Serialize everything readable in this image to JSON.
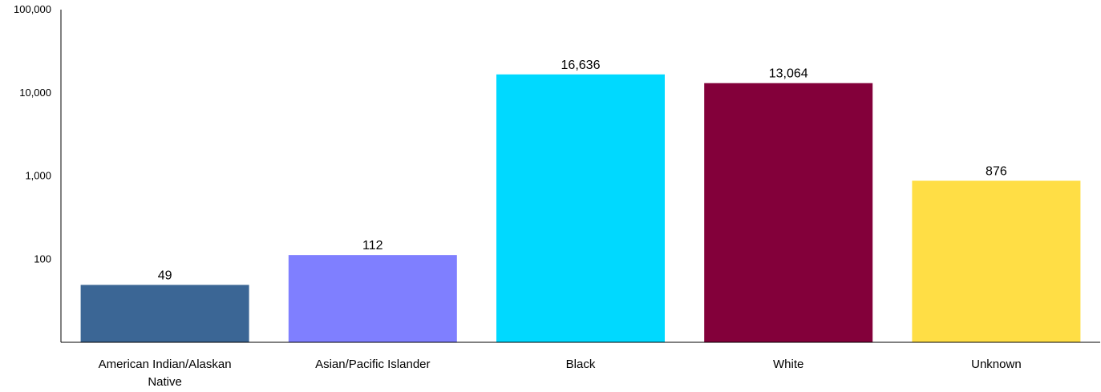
{
  "chart_data": {
    "type": "bar",
    "title": "",
    "xlabel": "",
    "ylabel": "",
    "y_scale": "log",
    "ylim": [
      10,
      100000
    ],
    "grid": false,
    "legend": "none",
    "y_ticks": [
      {
        "value": 100,
        "label": "100"
      },
      {
        "value": 1000,
        "label": "1,000"
      },
      {
        "value": 10000,
        "label": "10,000"
      },
      {
        "value": 100000,
        "label": "100,000"
      }
    ],
    "categories": [
      [
        "American Indian/Alaskan",
        "Native"
      ],
      [
        "Asian/Pacific Islander"
      ],
      [
        "Black"
      ],
      [
        "White"
      ],
      [
        "Unknown"
      ]
    ],
    "values": [
      49,
      112,
      16636,
      13064,
      876
    ],
    "value_labels": [
      "49",
      "112",
      "16,636",
      "13,064",
      "876"
    ],
    "colors": [
      "#3B6695",
      "#7F7FFF",
      "#00D9FF",
      "#83003A",
      "#FFDE45"
    ]
  }
}
